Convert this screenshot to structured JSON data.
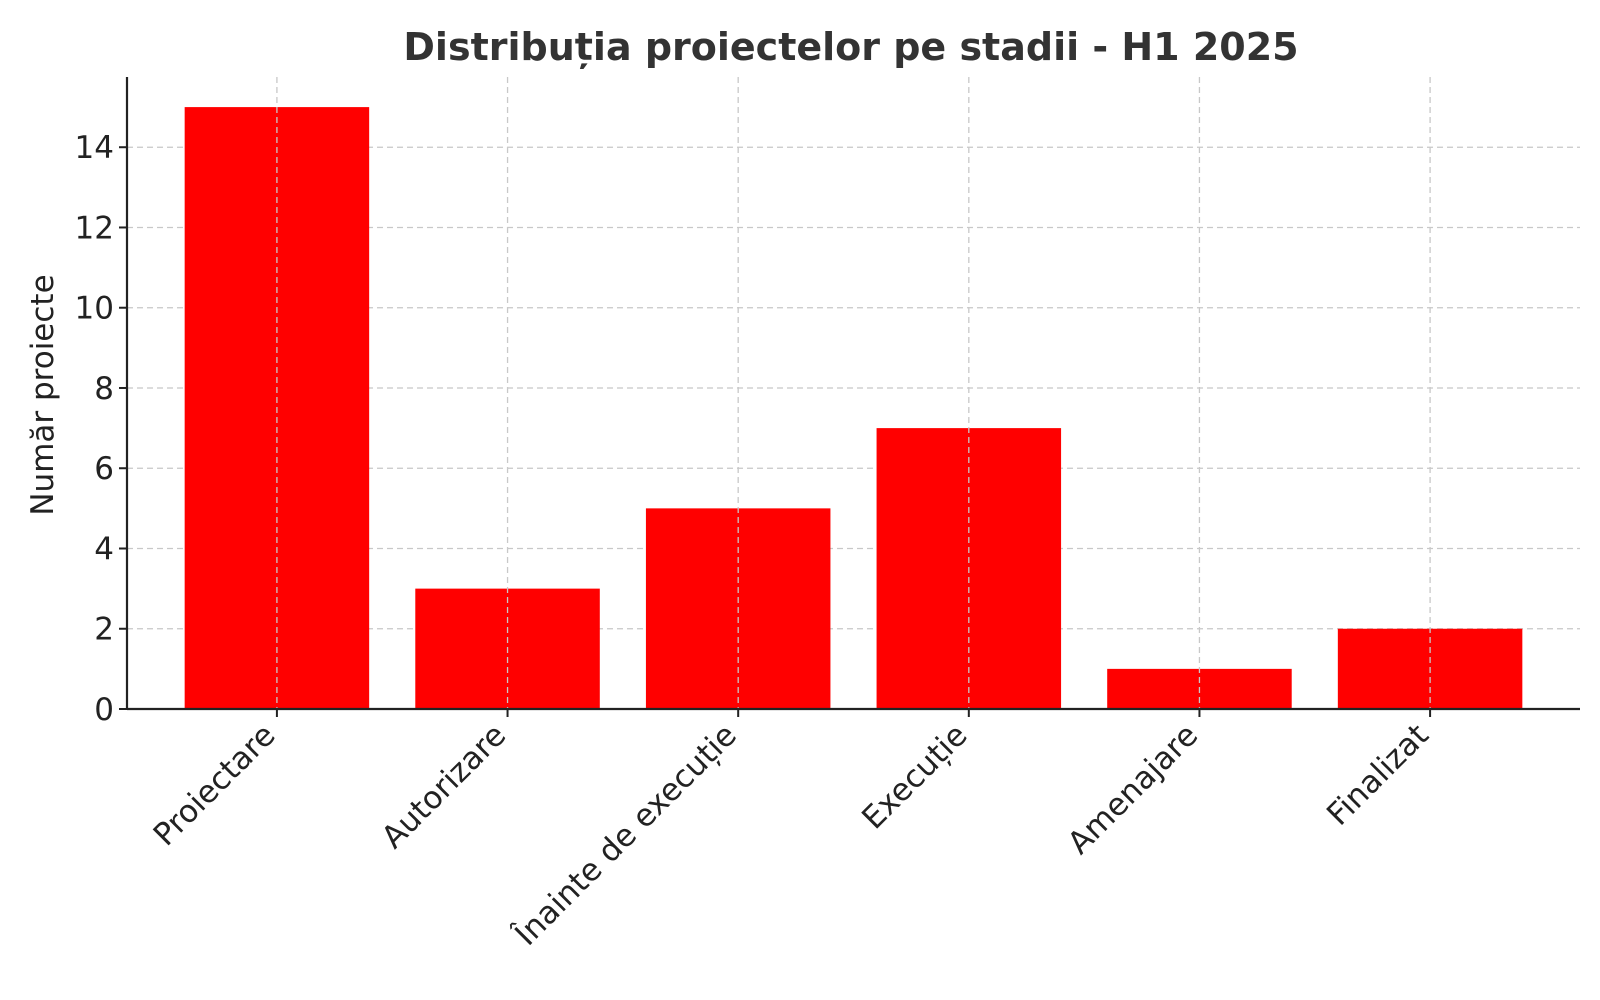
{
  "chart_data": {
    "type": "bar",
    "title": "Distribuția proiectelor pe stadii - H1 2025",
    "xlabel": "",
    "ylabel": "Număr proiecte",
    "categories": [
      "Proiectare",
      "Autorizare",
      "Înainte de execuție",
      "Execuție",
      "Amenajare",
      "Finalizat"
    ],
    "values": [
      15,
      3,
      5,
      7,
      1,
      2
    ],
    "ylim": [
      0,
      15.75
    ],
    "yticks": [
      0,
      2,
      4,
      6,
      8,
      10,
      12,
      14
    ],
    "grid": true,
    "bar_color": "#ff0000",
    "x_tick_rotation": "45 degrees"
  }
}
